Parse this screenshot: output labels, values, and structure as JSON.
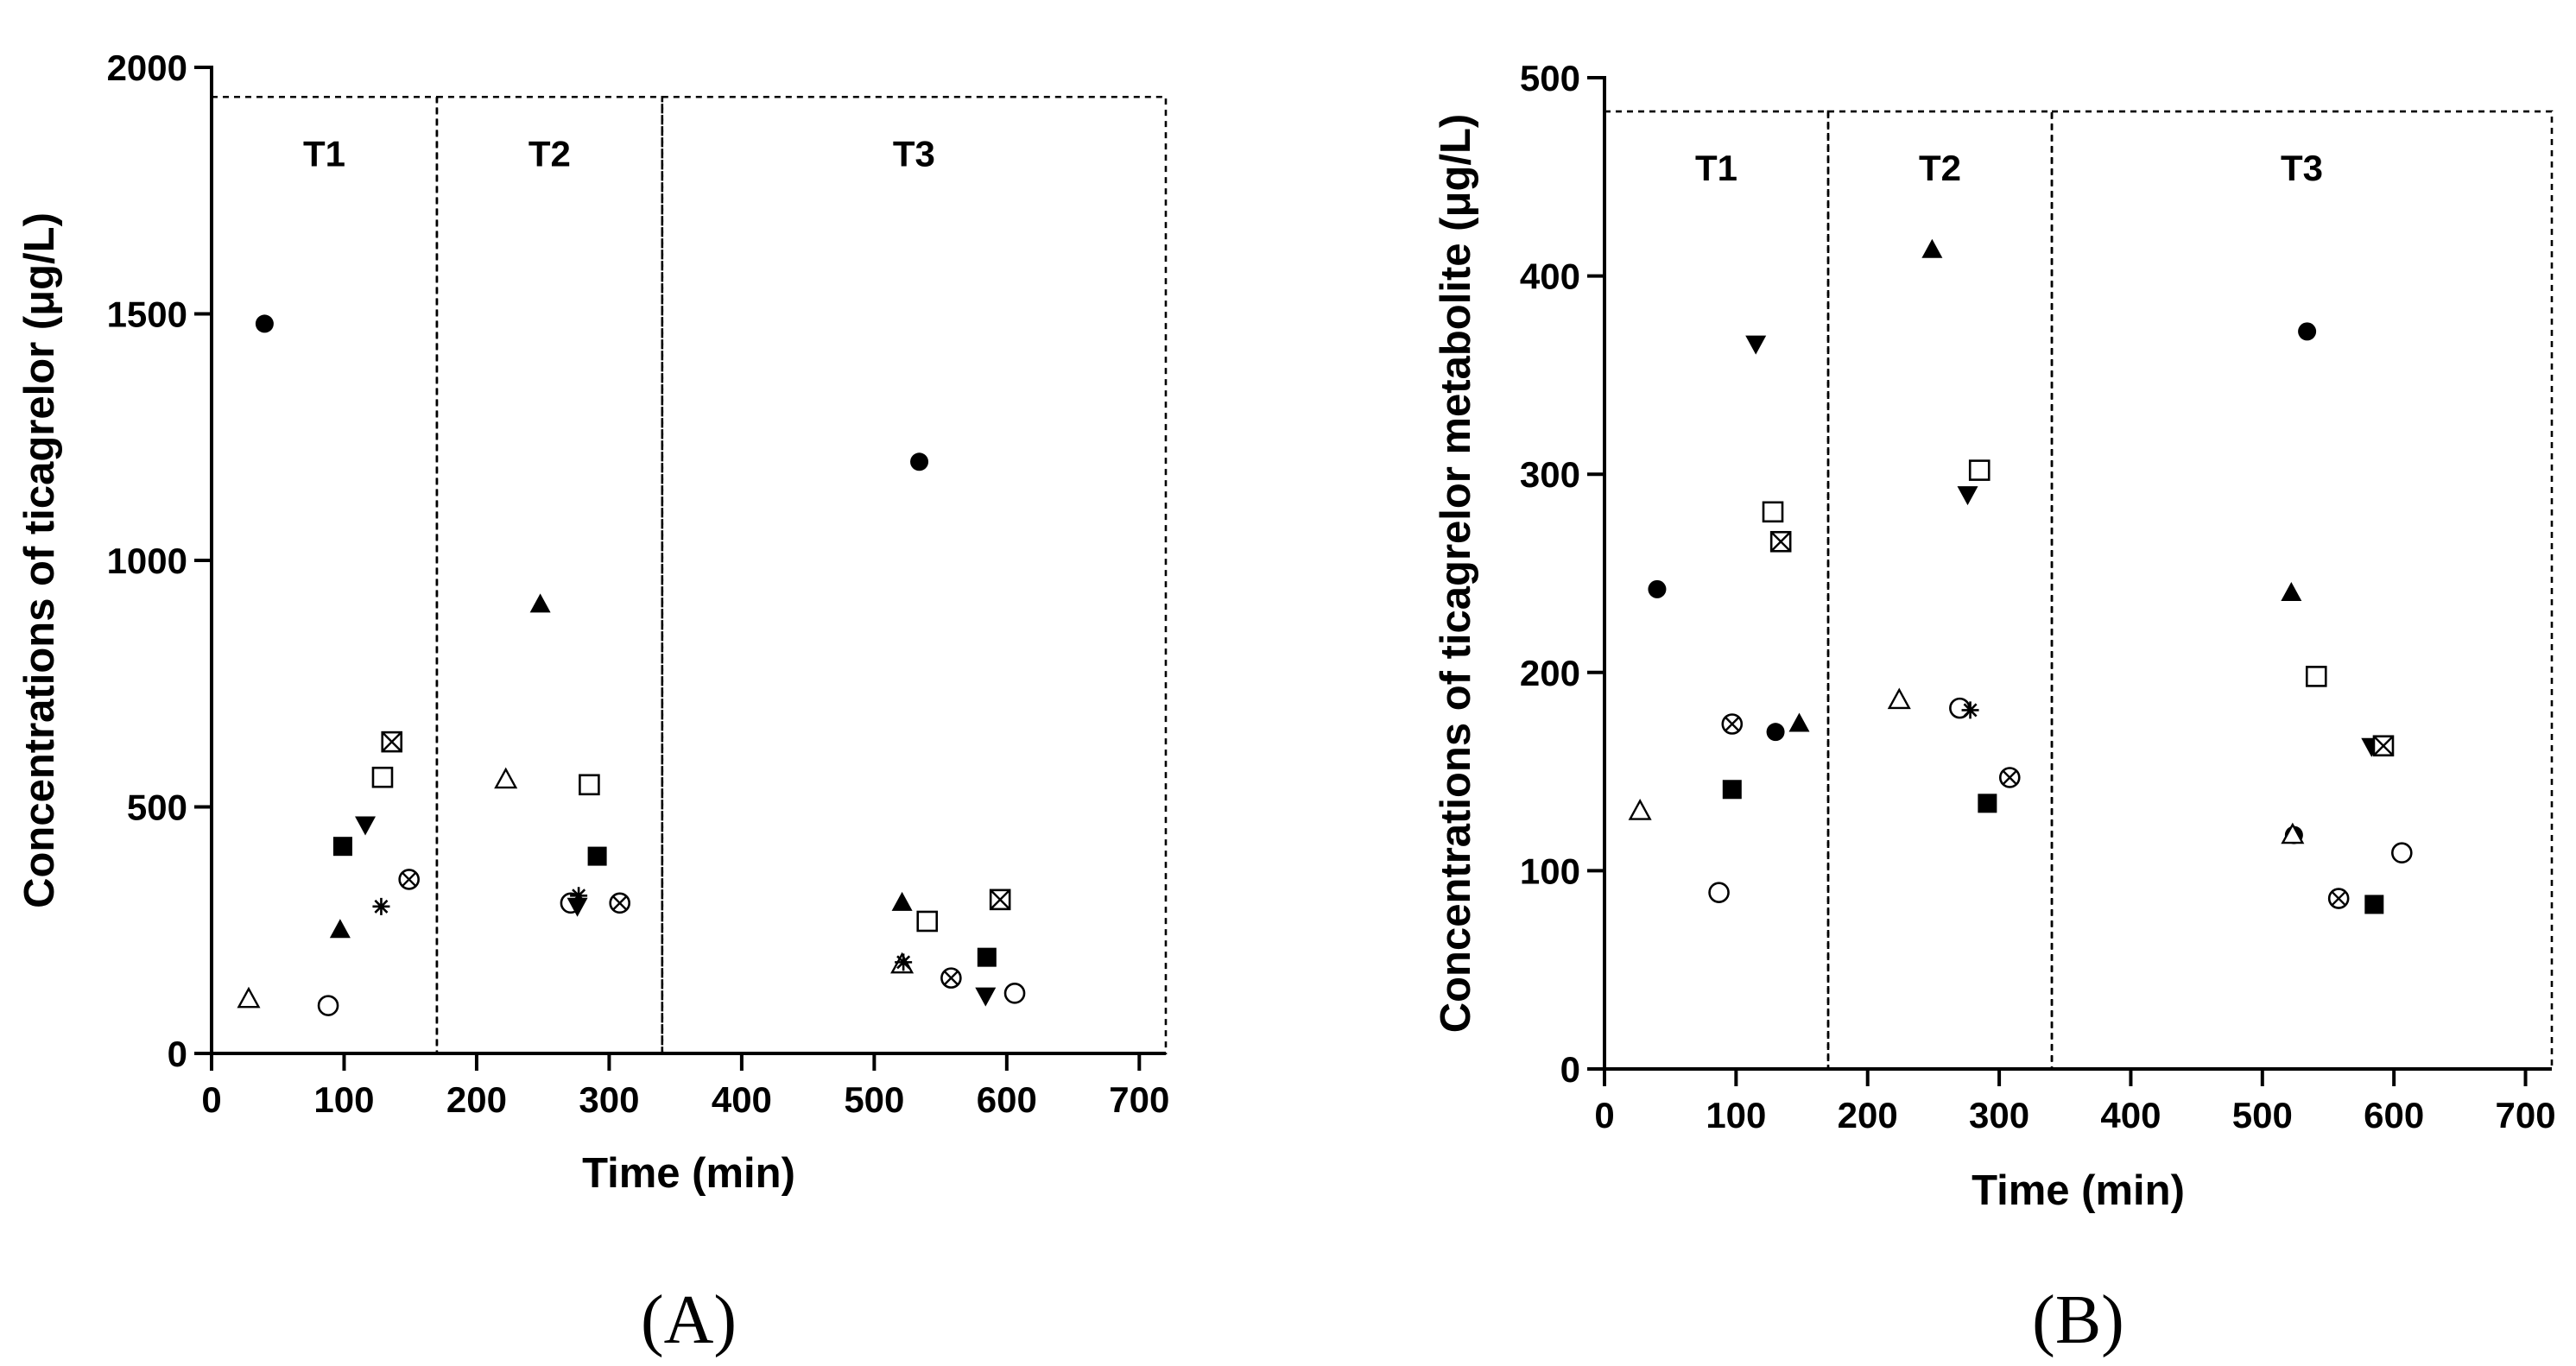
{
  "chart_data": [
    {
      "type": "scatter",
      "panel_label": "(A)",
      "xlabel": "Time (min)",
      "ylabel": "Concentrations of ticagrelor (μg/L)",
      "xlim": [
        0,
        720
      ],
      "ylim": [
        0,
        2000
      ],
      "xticks": [
        0,
        100,
        200,
        300,
        400,
        500,
        600,
        700
      ],
      "yticks": [
        0,
        500,
        1000,
        1500,
        2000
      ],
      "regions": [
        {
          "label": "T1",
          "x": [
            0,
            170
          ]
        },
        {
          "label": "T2",
          "x": [
            170,
            340
          ]
        },
        {
          "label": "T3",
          "x": [
            340,
            720
          ]
        }
      ],
      "region_top": 1940,
      "series": [
        {
          "marker": "filled-circle",
          "points": [
            [
              40,
              1480
            ],
            [
              534,
              1200
            ]
          ]
        },
        {
          "marker": "open-triangle",
          "points": [
            [
              28,
              110
            ],
            [
              222,
              555
            ],
            [
              521,
              180
            ]
          ]
        },
        {
          "marker": "open-circle",
          "points": [
            [
              88,
              97
            ],
            [
              271,
              305
            ],
            [
              606,
              122
            ]
          ]
        },
        {
          "marker": "filled-triangle",
          "points": [
            [
              97,
              250
            ],
            [
              248,
              910
            ],
            [
              521,
              305
            ]
          ]
        },
        {
          "marker": "filled-square",
          "points": [
            [
              99,
              420
            ],
            [
              291,
              400
            ],
            [
              585,
              195
            ]
          ]
        },
        {
          "marker": "filled-triangle-down",
          "points": [
            [
              116,
              465
            ],
            [
              276,
              300
            ],
            [
              584,
              118
            ]
          ]
        },
        {
          "marker": "asterisk",
          "points": [
            [
              128,
              298
            ],
            [
              277,
              320
            ],
            [
              522,
              185
            ]
          ]
        },
        {
          "marker": "open-square",
          "points": [
            [
              129,
              560
            ],
            [
              285,
              545
            ],
            [
              540,
              268
            ]
          ]
        },
        {
          "marker": "boxed-x",
          "points": [
            [
              136,
              632
            ],
            [
              595,
              312
            ]
          ]
        },
        {
          "marker": "circled-x",
          "points": [
            [
              149,
              353
            ],
            [
              308,
              305
            ],
            [
              558,
              153
            ]
          ]
        }
      ]
    },
    {
      "type": "scatter",
      "panel_label": "(B)",
      "xlabel": "Time (min)",
      "ylabel": "Concentrations of ticagrelor metabolite (μg/L)",
      "xlim": [
        0,
        720
      ],
      "ylim": [
        0,
        500
      ],
      "xticks": [
        0,
        100,
        200,
        300,
        400,
        500,
        600,
        700
      ],
      "yticks": [
        0,
        100,
        200,
        300,
        400,
        500
      ],
      "regions": [
        {
          "label": "T1",
          "x": [
            0,
            170
          ]
        },
        {
          "label": "T2",
          "x": [
            170,
            340
          ]
        },
        {
          "label": "T3",
          "x": [
            340,
            720
          ]
        }
      ],
      "region_top": 483,
      "series": [
        {
          "marker": "filled-circle",
          "points": [
            [
              40,
              242
            ],
            [
              130,
              170
            ],
            [
              534,
              372
            ],
            [
              524,
              118
            ]
          ]
        },
        {
          "marker": "open-triangle",
          "points": [
            [
              27,
              130
            ],
            [
              224,
              186
            ],
            [
              523,
              118
            ]
          ]
        },
        {
          "marker": "open-circle",
          "points": [
            [
              87,
              89
            ],
            [
              270,
              182
            ],
            [
              606,
              109
            ]
          ]
        },
        {
          "marker": "filled-triangle",
          "points": [
            [
              148,
              174
            ],
            [
              249,
              413
            ],
            [
              522,
              240
            ]
          ]
        },
        {
          "marker": "filled-square",
          "points": [
            [
              97,
              141
            ],
            [
              291,
              134
            ],
            [
              585,
              83
            ]
          ]
        },
        {
          "marker": "filled-triangle-down",
          "points": [
            [
              115,
              366
            ],
            [
              276,
              290
            ],
            [
              583,
              163
            ]
          ]
        },
        {
          "marker": "asterisk",
          "points": [
            [
              278,
              181
            ]
          ]
        },
        {
          "marker": "open-square",
          "points": [
            [
              128,
              281
            ],
            [
              285,
              302
            ],
            [
              541,
              198
            ]
          ]
        },
        {
          "marker": "boxed-x",
          "points": [
            [
              134,
              266
            ],
            [
              592,
              163
            ]
          ]
        },
        {
          "marker": "circled-x",
          "points": [
            [
              97,
              174
            ],
            [
              308,
              147
            ],
            [
              558,
              86
            ]
          ]
        }
      ]
    }
  ]
}
